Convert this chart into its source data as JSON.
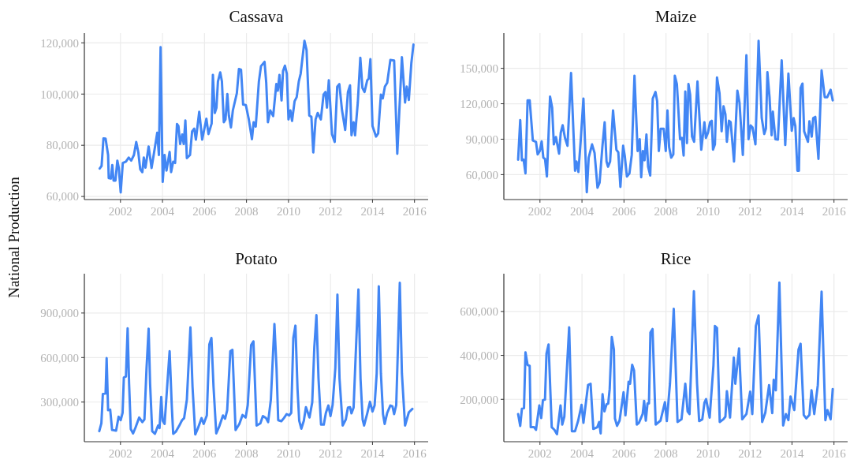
{
  "chart_data": [
    {
      "type": "line",
      "title": "Cassava",
      "ylabel": "National Production",
      "xlim": [
        2000.28,
        2016.65
      ],
      "xticks": [
        2002,
        2004,
        2006,
        2008,
        2010,
        2012,
        2014,
        2016
      ],
      "ylim": [
        58800,
        123800
      ],
      "yticks": [
        {
          "value": 60000,
          "label": "60,000"
        },
        {
          "value": 80000,
          "label": "80,000"
        },
        {
          "value": 100000,
          "label": "100,000"
        },
        {
          "value": 120000,
          "label": "120,000"
        }
      ],
      "grid": true,
      "series": [
        {
          "color": "#4286f4",
          "x": [
            2001.01,
            2001.1,
            2001.19,
            2001.29,
            2001.41,
            2001.44,
            2001.54,
            2001.61,
            2001.67,
            2001.76,
            2001.85,
            2001.92,
            2002.01,
            2002.11,
            2002.26,
            2002.39,
            2002.51,
            2002.64,
            2002.75,
            2002.85,
            2002.94,
            2003.04,
            2003.11,
            2003.19,
            2003.34,
            2003.48,
            2003.6,
            2003.75,
            2003.83,
            2003.91,
            2004.01,
            2004.1,
            2004.19,
            2004.34,
            2004.41,
            2004.51,
            2004.6,
            2004.69,
            2004.76,
            2004.84,
            2004.94,
            2005.01,
            2005.09,
            2005.16,
            2005.31,
            2005.41,
            2005.51,
            2005.59,
            2005.75,
            2005.89,
            2006.09,
            2006.19,
            2006.34,
            2006.4,
            2006.49,
            2006.57,
            2006.64,
            2006.75,
            2006.83,
            2006.92,
            2007.0,
            2007.09,
            2007.16,
            2007.26,
            2007.35,
            2007.54,
            2007.64,
            2007.74,
            2007.84,
            2007.97,
            2008.11,
            2008.26,
            2008.34,
            2008.44,
            2008.59,
            2008.69,
            2008.86,
            2008.94,
            2009.02,
            2009.13,
            2009.27,
            2009.42,
            2009.49,
            2009.57,
            2009.67,
            2009.74,
            2009.83,
            2009.92,
            2010.0,
            2010.09,
            2010.17,
            2010.29,
            2010.39,
            2010.49,
            2010.58,
            2010.76,
            2010.86,
            2010.99,
            2011.09,
            2011.18,
            2011.29,
            2011.39,
            2011.54,
            2011.67,
            2011.76,
            2011.83,
            2011.92,
            2012.07,
            2012.2,
            2012.32,
            2012.42,
            2012.55,
            2012.7,
            2012.83,
            2012.93,
            2013.0,
            2013.1,
            2013.17,
            2013.3,
            2013.42,
            2013.52,
            2013.62,
            2013.75,
            2013.82,
            2013.9,
            2014.0,
            2014.17,
            2014.27,
            2014.4,
            2014.49,
            2014.59,
            2014.7,
            2014.85,
            2015.03,
            2015.18,
            2015.4,
            2015.55,
            2015.63,
            2015.73,
            2015.85,
            2015.95
          ],
          "values": [
            70900,
            71900,
            82700,
            82600,
            76200,
            67200,
            67000,
            72300,
            66200,
            66200,
            74000,
            71100,
            61600,
            73100,
            73600,
            75200,
            74000,
            76200,
            81300,
            77200,
            70600,
            69500,
            75200,
            71300,
            79500,
            71100,
            77200,
            84900,
            76200,
            118300,
            65700,
            76200,
            70100,
            77400,
            69500,
            73600,
            73100,
            88300,
            87500,
            80500,
            84200,
            80500,
            89700,
            75000,
            76200,
            85400,
            86500,
            82200,
            93100,
            82200,
            90400,
            84400,
            88500,
            107500,
            92600,
            94700,
            104900,
            108500,
            104900,
            89000,
            90100,
            100000,
            91600,
            87000,
            93600,
            100300,
            109800,
            109500,
            95900,
            95700,
            90100,
            82400,
            89000,
            87300,
            104900,
            110900,
            112600,
            104400,
            89000,
            93600,
            91400,
            103900,
            101300,
            107500,
            97500,
            109000,
            111100,
            108000,
            90100,
            93600,
            89500,
            97200,
            98800,
            104900,
            108000,
            120800,
            117200,
            91600,
            91100,
            77200,
            90100,
            92600,
            90100,
            99800,
            100800,
            94700,
            105400,
            84400,
            81300,
            102900,
            103900,
            93600,
            86000,
            100800,
            103400,
            83900,
            89000,
            83900,
            96700,
            114200,
            102400,
            100800,
            105400,
            106000,
            113600,
            87500,
            83400,
            84600,
            99800,
            98300,
            102900,
            104400,
            113300,
            113100,
            76700,
            114400,
            96700,
            102900,
            97700,
            112100,
            119300
          ]
        }
      ]
    },
    {
      "type": "line",
      "title": "Maize",
      "xlim": [
        2000.28,
        2016.65
      ],
      "xticks": [
        2002,
        2004,
        2006,
        2008,
        2010,
        2012,
        2014,
        2016
      ],
      "ylim": [
        38900,
        179800
      ],
      "yticks": [
        {
          "value": 60000,
          "label": "60,000"
        },
        {
          "value": 90000,
          "label": "90,000"
        },
        {
          "value": 120000,
          "label": "120,000"
        },
        {
          "value": 150000,
          "label": "150,000"
        }
      ],
      "grid": true,
      "series": [
        {
          "color": "#4286f4",
          "x": [
            2000.96,
            2001.06,
            2001.14,
            2001.22,
            2001.31,
            2001.41,
            2001.51,
            2001.66,
            2001.81,
            2001.89,
            2001.99,
            2002.08,
            2002.16,
            2002.24,
            2002.33,
            2002.48,
            2002.58,
            2002.66,
            2002.76,
            2002.91,
            2002.99,
            2003.08,
            2003.19,
            2003.31,
            2003.48,
            2003.67,
            2003.74,
            2003.83,
            2003.94,
            2004.07,
            2004.23,
            2004.32,
            2004.48,
            2004.6,
            2004.74,
            2004.84,
            2004.97,
            2005.08,
            2005.17,
            2005.24,
            2005.34,
            2005.48,
            2005.64,
            2005.73,
            2005.83,
            2005.96,
            2006.04,
            2006.14,
            2006.26,
            2006.37,
            2006.5,
            2006.65,
            2006.75,
            2006.82,
            2006.9,
            2006.98,
            2007.07,
            2007.15,
            2007.25,
            2007.37,
            2007.5,
            2007.58,
            2007.66,
            2007.75,
            2007.89,
            2007.99,
            2008.07,
            2008.15,
            2008.25,
            2008.35,
            2008.42,
            2008.52,
            2008.67,
            2008.76,
            2008.84,
            2008.92,
            2009.0,
            2009.07,
            2009.15,
            2009.24,
            2009.34,
            2009.5,
            2009.68,
            2009.83,
            2009.9,
            2010.0,
            2010.1,
            2010.18,
            2010.24,
            2010.33,
            2010.43,
            2010.55,
            2010.65,
            2010.74,
            2010.83,
            2010.9,
            2011.0,
            2011.08,
            2011.24,
            2011.4,
            2011.5,
            2011.66,
            2011.83,
            2011.93,
            2012.03,
            2012.12,
            2012.26,
            2012.41,
            2012.56,
            2012.68,
            2012.76,
            2012.83,
            2012.93,
            2013.03,
            2013.09,
            2013.21,
            2013.33,
            2013.51,
            2013.68,
            2013.83,
            2013.99,
            2014.08,
            2014.16,
            2014.26,
            2014.33,
            2014.41,
            2014.5,
            2014.58,
            2014.76,
            2014.83,
            2014.94,
            2015.01,
            2015.11,
            2015.26,
            2015.41,
            2015.56,
            2015.68,
            2015.84,
            2015.94
          ],
          "values": [
            72700,
            106200,
            72200,
            72700,
            61100,
            122900,
            122900,
            88900,
            87800,
            77100,
            80000,
            88200,
            74400,
            73300,
            58400,
            126000,
            116700,
            85600,
            91800,
            77800,
            95600,
            101800,
            91100,
            84400,
            146000,
            63300,
            71100,
            62200,
            88900,
            124400,
            45100,
            74400,
            85600,
            78400,
            48900,
            53300,
            83300,
            104400,
            71100,
            66700,
            71100,
            114400,
            81100,
            78900,
            49600,
            84400,
            75600,
            58400,
            61100,
            76700,
            143800,
            80000,
            90000,
            57800,
            80000,
            72200,
            94000,
            66700,
            59300,
            124400,
            130000,
            122200,
            80000,
            98900,
            98900,
            80000,
            114400,
            83300,
            74400,
            77100,
            143800,
            136700,
            90000,
            91100,
            76200,
            130400,
            86700,
            136700,
            127800,
            92200,
            87800,
            138900,
            81100,
            104400,
            91100,
            95600,
            104400,
            105600,
            81100,
            85600,
            142200,
            128900,
            96700,
            117800,
            111100,
            87800,
            105600,
            104400,
            71100,
            131100,
            121100,
            76700,
            161100,
            90000,
            101600,
            100000,
            85600,
            173300,
            107800,
            94400,
            98900,
            146700,
            125600,
            93300,
            113300,
            90000,
            89600,
            156700,
            85100,
            145600,
            97100,
            107800,
            101100,
            63300,
            63300,
            133300,
            137100,
            96700,
            87800,
            105100,
            92200,
            107800,
            108900,
            73300,
            148200,
            125600,
            125600,
            131800,
            122900
          ]
        }
      ]
    },
    {
      "type": "line",
      "title": "Potato",
      "xlim": [
        2000.28,
        2016.65
      ],
      "xticks": [
        2002,
        2004,
        2006,
        2008,
        2010,
        2012,
        2014,
        2016
      ],
      "ylim": [
        33000,
        1165000
      ],
      "yticks": [
        {
          "value": 300000,
          "label": "300,000"
        },
        {
          "value": 600000,
          "label": "600,000"
        },
        {
          "value": 900000,
          "label": "900,000"
        }
      ],
      "grid": true,
      "series": [
        {
          "color": "#4286f4",
          "x": [
            2000.99,
            2001.09,
            2001.16,
            2001.29,
            2001.34,
            2001.41,
            2001.51,
            2001.6,
            2001.79,
            2001.91,
            2002.01,
            2002.1,
            2002.16,
            2002.26,
            2002.34,
            2002.41,
            2002.49,
            2002.6,
            2002.72,
            2002.89,
            2003.04,
            2003.14,
            2003.24,
            2003.34,
            2003.41,
            2003.51,
            2003.64,
            2003.79,
            2003.86,
            2003.94,
            2004.01,
            2004.1,
            2004.24,
            2004.34,
            2004.44,
            2004.51,
            2004.63,
            2004.79,
            2004.93,
            2005.03,
            2005.16,
            2005.33,
            2005.43,
            2005.56,
            2005.68,
            2005.86,
            2005.96,
            2006.11,
            2006.23,
            2006.33,
            2006.43,
            2006.56,
            2006.71,
            2006.88,
            2006.98,
            2007.08,
            2007.23,
            2007.33,
            2007.48,
            2007.66,
            2007.81,
            2007.96,
            2008.06,
            2008.22,
            2008.33,
            2008.48,
            2008.66,
            2008.78,
            2008.93,
            2009.03,
            2009.16,
            2009.33,
            2009.43,
            2009.51,
            2009.66,
            2009.78,
            2009.91,
            2010.03,
            2010.13,
            2010.23,
            2010.33,
            2010.43,
            2010.51,
            2010.61,
            2010.73,
            2010.83,
            2011.0,
            2011.13,
            2011.23,
            2011.33,
            2011.43,
            2011.55,
            2011.68,
            2011.78,
            2011.9,
            2012.0,
            2012.1,
            2012.23,
            2012.33,
            2012.43,
            2012.58,
            2012.73,
            2012.83,
            2012.93,
            2013.0,
            2013.1,
            2013.2,
            2013.33,
            2013.43,
            2013.53,
            2013.6,
            2013.75,
            2013.88,
            2014.0,
            2014.1,
            2014.2,
            2014.3,
            2014.4,
            2014.5,
            2014.58,
            2014.7,
            2014.85,
            2014.95,
            2015.03,
            2015.13,
            2015.23,
            2015.3,
            2015.4,
            2015.55,
            2015.73,
            2015.9
          ],
          "values": [
            104000,
            157000,
            355000,
            358000,
            596000,
            245000,
            249000,
            112000,
            107000,
            201000,
            178000,
            227000,
            466000,
            472000,
            797000,
            422000,
            118000,
            89000,
            130000,
            196000,
            165000,
            183000,
            528000,
            794000,
            422000,
            104000,
            86000,
            142000,
            125000,
            334000,
            174000,
            153000,
            440000,
            643000,
            280000,
            86000,
            100000,
            139000,
            178000,
            192000,
            316000,
            803000,
            404000,
            82000,
            121000,
            192000,
            153000,
            210000,
            688000,
            732000,
            404000,
            89000,
            139000,
            210000,
            188000,
            245000,
            643000,
            652000,
            112000,
            153000,
            213000,
            196000,
            280000,
            684000,
            709000,
            142000,
            157000,
            206000,
            192000,
            165000,
            316000,
            826000,
            528000,
            178000,
            171000,
            192000,
            219000,
            210000,
            227000,
            732000,
            815000,
            387000,
            174000,
            121000,
            174000,
            266000,
            196000,
            298000,
            670000,
            886000,
            457000,
            148000,
            148000,
            227000,
            277000,
            206000,
            280000,
            528000,
            1024000,
            457000,
            142000,
            183000,
            263000,
            266000,
            224000,
            263000,
            617000,
            1059000,
            457000,
            183000,
            142000,
            224000,
            302000,
            236000,
            277000,
            493000,
            1080000,
            493000,
            219000,
            153000,
            227000,
            277000,
            271000,
            219000,
            280000,
            758000,
            1104000,
            493000,
            142000,
            231000,
            254000
          ]
        }
      ]
    },
    {
      "type": "line",
      "title": "Rice",
      "xlim": [
        2000.28,
        2016.65
      ],
      "xticks": [
        2002,
        2004,
        2006,
        2008,
        2010,
        2012,
        2014,
        2016
      ],
      "ylim": [
        7000,
        772000
      ],
      "yticks": [
        {
          "value": 200000,
          "label": "200,000"
        },
        {
          "value": 400000,
          "label": "400,000"
        },
        {
          "value": 600000,
          "label": "600,000"
        }
      ],
      "grid": true,
      "series": [
        {
          "color": "#4286f4",
          "x": [
            2000.96,
            2001.06,
            2001.14,
            2001.24,
            2001.31,
            2001.41,
            2001.51,
            2001.56,
            2001.72,
            2001.81,
            2001.97,
            2002.06,
            2002.14,
            2002.24,
            2002.31,
            2002.41,
            2002.51,
            2002.56,
            2002.69,
            2002.81,
            2002.98,
            2003.06,
            2003.16,
            2003.39,
            2003.52,
            2003.67,
            2003.82,
            2003.98,
            2004.07,
            2004.29,
            2004.41,
            2004.54,
            2004.73,
            2004.82,
            2004.89,
            2004.98,
            2005.07,
            2005.17,
            2005.25,
            2005.32,
            2005.42,
            2005.52,
            2005.57,
            2005.67,
            2005.79,
            2005.98,
            2006.07,
            2006.22,
            2006.29,
            2006.39,
            2006.48,
            2006.61,
            2006.71,
            2006.89,
            2006.96,
            2007.04,
            2007.12,
            2007.19,
            2007.26,
            2007.36,
            2007.51,
            2007.74,
            2007.95,
            2008.04,
            2008.19,
            2008.37,
            2008.55,
            2008.74,
            2008.92,
            2009.03,
            2009.12,
            2009.33,
            2009.48,
            2009.58,
            2009.73,
            2009.83,
            2009.91,
            2010.08,
            2010.26,
            2010.33,
            2010.43,
            2010.56,
            2010.73,
            2010.83,
            2010.9,
            2011.05,
            2011.23,
            2011.3,
            2011.48,
            2011.63,
            2011.83,
            2012.01,
            2012.11,
            2012.28,
            2012.41,
            2012.58,
            2012.73,
            2012.91,
            2013.06,
            2013.13,
            2013.23,
            2013.4,
            2013.58,
            2013.71,
            2013.83,
            2013.93,
            2014.11,
            2014.31,
            2014.41,
            2014.56,
            2014.68,
            2014.83,
            2014.93,
            2015.06,
            2015.23,
            2015.41,
            2015.59,
            2015.69,
            2015.84,
            2015.94
          ],
          "values": [
            133000,
            79000,
            157000,
            160000,
            414000,
            357000,
            352000,
            73000,
            73000,
            61000,
            172000,
            115000,
            196000,
            199000,
            408000,
            450000,
            199000,
            73000,
            61000,
            41000,
            172000,
            85000,
            121000,
            528000,
            55000,
            55000,
            103000,
            175000,
            93000,
            265000,
            271000,
            65000,
            73000,
            97000,
            45000,
            223000,
            145000,
            177000,
            181000,
            247000,
            484000,
            426000,
            113000,
            79000,
            103000,
            232000,
            127000,
            280000,
            271000,
            357000,
            331000,
            85000,
            93000,
            133000,
            193000,
            103000,
            181000,
            181000,
            504000,
            520000,
            85000,
            103000,
            187000,
            101000,
            271000,
            612000,
            97000,
            109000,
            271000,
            145000,
            133000,
            692000,
            271000,
            101000,
            109000,
            184000,
            201000,
            117000,
            354000,
            534000,
            525000,
            97000,
            109000,
            121000,
            237000,
            117000,
            390000,
            271000,
            432000,
            109000,
            133000,
            235000,
            133000,
            534000,
            582000,
            97000,
            139000,
            265000,
            137000,
            289000,
            241000,
            732000,
            81000,
            133000,
            105000,
            213000,
            151000,
            426000,
            453000,
            129000,
            113000,
            129000,
            241000,
            133000,
            265000,
            690000,
            105000,
            151000,
            109000,
            247000
          ]
        }
      ]
    }
  ]
}
